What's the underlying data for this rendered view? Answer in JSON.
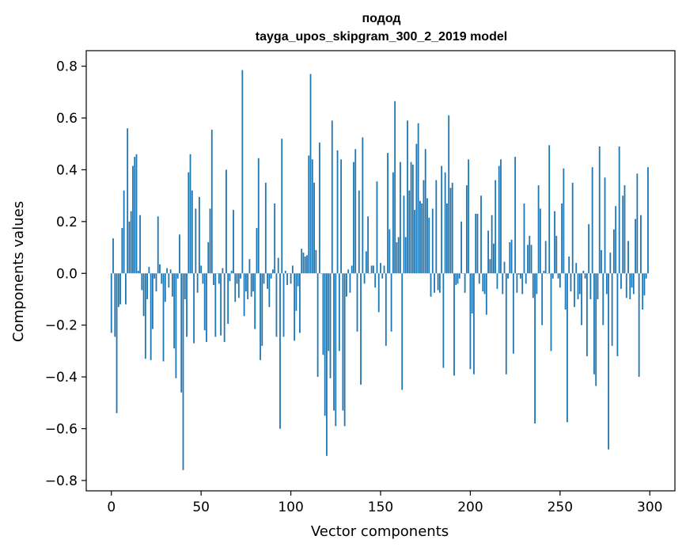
{
  "chart_data": {
    "type": "bar",
    "title": "подод",
    "subtitle": "tayga_upos_skipgram_300_2_2019 model",
    "xlabel": "Vector components",
    "ylabel": "Components values",
    "xlim": [
      -14,
      314
    ],
    "ylim": [
      -0.84,
      0.86
    ],
    "xticks": [
      0,
      50,
      100,
      150,
      200,
      250,
      300
    ],
    "xtick_labels": [
      "0",
      "50",
      "100",
      "150",
      "200",
      "250",
      "300"
    ],
    "yticks": [
      -0.8,
      -0.6,
      -0.4,
      -0.2,
      0.0,
      0.2,
      0.4,
      0.6,
      0.8
    ],
    "ytick_labels": [
      "−0.8",
      "−0.6",
      "−0.4",
      "−0.2",
      "0.0",
      "0.2",
      "0.4",
      "0.6",
      "0.8"
    ],
    "bar_color": "#1f77b4",
    "grid": false,
    "x": "indices 0..299 (one bar per vector component)",
    "values": [
      -0.23,
      0.135,
      -0.245,
      -0.54,
      -0.13,
      -0.12,
      0.175,
      0.32,
      -0.12,
      0.56,
      0.2,
      0.24,
      0.415,
      0.45,
      0.46,
      0.01,
      0.225,
      -0.065,
      -0.165,
      -0.33,
      -0.1,
      0.025,
      -0.335,
      -0.215,
      -0.02,
      -0.07,
      0.22,
      0.035,
      -0.04,
      -0.34,
      -0.11,
      0.02,
      -0.055,
      0.015,
      -0.09,
      -0.29,
      -0.405,
      -0.02,
      0.15,
      -0.46,
      -0.76,
      -0.1,
      -0.245,
      0.39,
      0.46,
      0.32,
      -0.27,
      0.25,
      -0.075,
      0.295,
      0.03,
      -0.04,
      -0.22,
      -0.265,
      0.12,
      0.25,
      0.555,
      -0.045,
      -0.245,
      0.0,
      -0.04,
      -0.24,
      0.02,
      -0.265,
      0.4,
      -0.195,
      -0.03,
      0.01,
      0.245,
      -0.11,
      -0.04,
      -0.095,
      -0.02,
      0.785,
      -0.165,
      -0.07,
      -0.1,
      0.055,
      -0.09,
      -0.07,
      -0.215,
      0.175,
      0.445,
      -0.335,
      -0.28,
      -0.04,
      0.35,
      -0.06,
      -0.13,
      -0.02,
      0.015,
      0.27,
      -0.245,
      0.06,
      -0.6,
      0.52,
      -0.245,
      0.01,
      -0.045,
      0.0,
      -0.04,
      0.03,
      -0.26,
      -0.145,
      -0.05,
      -0.23,
      0.095,
      0.08,
      0.065,
      0.07,
      0.455,
      0.77,
      0.44,
      0.35,
      0.09,
      -0.4,
      0.505,
      0.0,
      -0.315,
      -0.55,
      -0.705,
      -0.3,
      -0.405,
      0.59,
      -0.53,
      -0.59,
      0.475,
      -0.3,
      0.44,
      -0.53,
      -0.59,
      -0.09,
      0.015,
      -0.075,
      0.03,
      0.43,
      0.48,
      -0.225,
      0.32,
      -0.43,
      0.525,
      -0.04,
      0.085,
      0.22,
      0.0,
      0.03,
      0.03,
      -0.055,
      0.355,
      -0.15,
      0.04,
      -0.02,
      0.03,
      -0.28,
      0.465,
      0.17,
      -0.225,
      0.39,
      0.665,
      0.12,
      0.14,
      0.43,
      -0.45,
      0.3,
      0.14,
      0.59,
      0.32,
      0.43,
      0.42,
      0.245,
      0.5,
      0.58,
      0.28,
      0.27,
      0.36,
      0.48,
      0.29,
      0.215,
      -0.09,
      0.25,
      -0.075,
      0.36,
      -0.065,
      -0.075,
      0.415,
      -0.365,
      0.39,
      0.27,
      0.61,
      0.33,
      0.35,
      -0.395,
      -0.045,
      -0.04,
      -0.02,
      0.2,
      0.0,
      -0.075,
      0.34,
      0.44,
      -0.37,
      -0.155,
      -0.39,
      0.23,
      0.23,
      -0.04,
      0.3,
      -0.07,
      -0.08,
      -0.16,
      0.165,
      0.055,
      0.225,
      0.115,
      0.36,
      -0.06,
      0.415,
      0.44,
      -0.08,
      0.045,
      -0.39,
      -0.02,
      0.12,
      0.13,
      -0.31,
      0.45,
      -0.075,
      -0.005,
      -0.02,
      -0.08,
      0.27,
      -0.04,
      0.11,
      0.145,
      0.11,
      -0.095,
      -0.58,
      -0.08,
      0.34,
      0.25,
      -0.2,
      0.01,
      0.125,
      0.0,
      0.495,
      -0.3,
      -0.02,
      0.24,
      0.145,
      -0.02,
      -0.055,
      0.27,
      0.405,
      -0.14,
      -0.575,
      0.065,
      -0.07,
      0.35,
      -0.13,
      0.04,
      -0.1,
      -0.08,
      -0.2,
      0.01,
      -0.02,
      -0.32,
      0.19,
      -0.1,
      0.41,
      -0.39,
      -0.435,
      -0.1,
      0.49,
      0.09,
      -0.2,
      0.37,
      -0.08,
      -0.68,
      0.08,
      -0.28,
      0.17,
      0.26,
      -0.32,
      0.49,
      -0.06,
      0.3,
      0.34,
      -0.095,
      0.125,
      -0.1,
      -0.055,
      -0.08,
      0.21,
      0.385,
      -0.4,
      0.225,
      -0.14,
      -0.085,
      -0.02,
      0.41
    ]
  }
}
